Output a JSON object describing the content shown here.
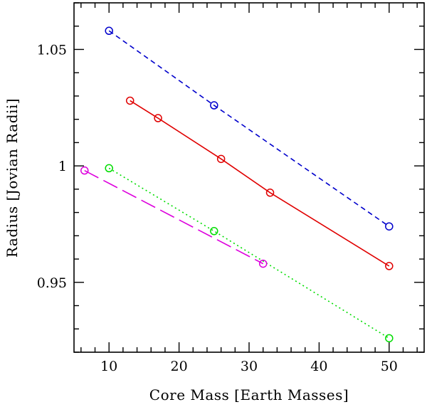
{
  "chart_data": {
    "type": "line",
    "title": "",
    "xlabel": "Core Mass [Earth Masses]",
    "ylabel": "Radius [Jovian Radii]",
    "xlim": [
      5,
      55
    ],
    "ylim": [
      0.92,
      1.07
    ],
    "xticks": [
      10,
      20,
      30,
      40,
      50
    ],
    "xtick_labels": [
      "10",
      "20",
      "30",
      "40",
      "50"
    ],
    "yticks": [
      0.95,
      1.0,
      1.05
    ],
    "ytick_labels": [
      "0.95",
      "1",
      "1.05"
    ],
    "grid": false,
    "legend": false,
    "series": [
      {
        "name": "blue",
        "color": "#0000cc",
        "dash": "short",
        "x": [
          10,
          25,
          50
        ],
        "y": [
          1.058,
          1.026,
          0.974
        ]
      },
      {
        "name": "red",
        "color": "#e00000",
        "dash": "solid",
        "x": [
          13,
          17,
          26,
          33,
          50
        ],
        "y": [
          1.028,
          1.0205,
          1.003,
          0.9885,
          0.957
        ]
      },
      {
        "name": "green",
        "color": "#00dd00",
        "dash": "dotted",
        "x": [
          10,
          25,
          50
        ],
        "y": [
          0.999,
          0.972,
          0.926
        ]
      },
      {
        "name": "magenta",
        "color": "#dd00dd",
        "dash": "long",
        "x": [
          6.5,
          32
        ],
        "y": [
          0.998,
          0.958
        ]
      }
    ]
  }
}
